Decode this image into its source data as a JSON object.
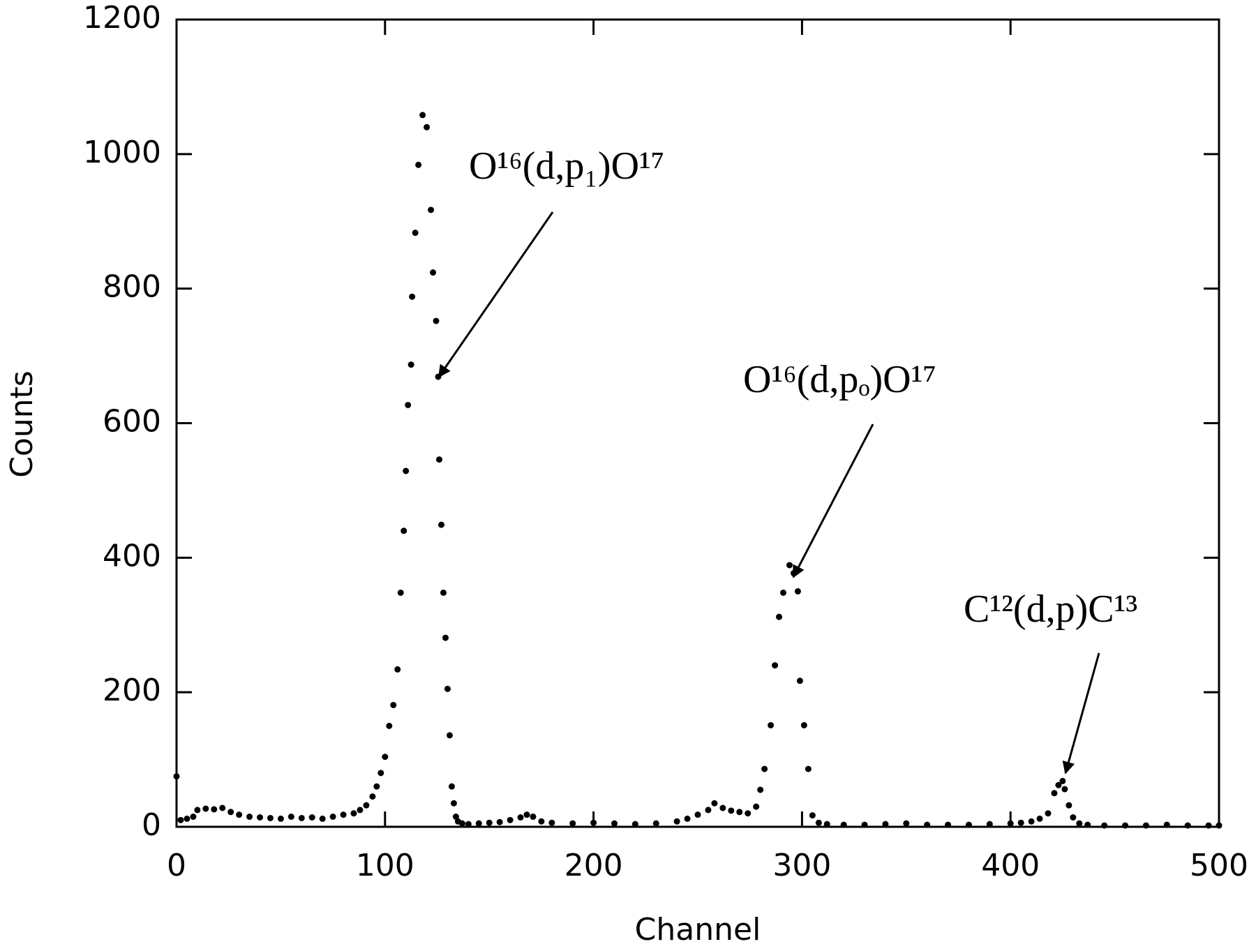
{
  "chart_data": {
    "type": "scatter",
    "x_label": "Channel",
    "y_label": "Counts",
    "x": [
      0,
      2,
      5,
      8,
      10,
      14,
      18,
      22,
      26,
      30,
      35,
      40,
      45,
      50,
      55,
      60,
      65,
      70,
      75,
      80,
      85,
      88,
      91,
      94,
      96,
      98,
      100,
      102,
      104,
      106,
      107.5,
      109,
      110,
      111,
      112.5,
      113,
      114.5,
      116,
      118,
      120,
      122,
      123,
      124.5,
      125.5,
      126,
      127,
      128,
      129,
      130,
      131,
      132,
      133,
      134,
      135,
      137,
      140,
      145,
      150,
      155,
      160,
      165,
      168,
      171,
      175,
      180,
      190,
      200,
      210,
      220,
      230,
      240,
      245,
      250,
      255,
      258,
      262,
      266,
      270,
      274,
      278,
      280,
      282,
      285,
      287,
      289,
      291,
      294,
      296,
      298,
      299,
      301,
      303,
      305,
      308,
      312,
      320,
      330,
      340,
      350,
      360,
      370,
      380,
      390,
      400,
      405,
      410,
      414,
      418,
      421,
      423,
      425,
      426,
      428,
      430,
      433,
      437,
      445,
      455,
      465,
      475,
      485,
      495,
      500
    ],
    "values": [
      75,
      10,
      12,
      15,
      25,
      27,
      26,
      28,
      22,
      18,
      15,
      14,
      13,
      12,
      15,
      13,
      14,
      12,
      15,
      18,
      20,
      25,
      32,
      45,
      60,
      80,
      104,
      150,
      181,
      234,
      348,
      440,
      529,
      627,
      687,
      788,
      883,
      984,
      1058,
      1040,
      917,
      824,
      752,
      669,
      546,
      449,
      348,
      281,
      205,
      136,
      60,
      35,
      15,
      8,
      5,
      4,
      5,
      6,
      7,
      10,
      14,
      18,
      15,
      8,
      6,
      5,
      6,
      5,
      4,
      5,
      8,
      12,
      18,
      25,
      35,
      28,
      24,
      22,
      20,
      30,
      55,
      86,
      151,
      240,
      312,
      348,
      389,
      377,
      350,
      217,
      151,
      86,
      17,
      6,
      4,
      3,
      3,
      4,
      5,
      3,
      3,
      3,
      4,
      5,
      6,
      8,
      12,
      20,
      50,
      62,
      68,
      56,
      32,
      14,
      5,
      3,
      2,
      2,
      2,
      3,
      2,
      2,
      2
    ],
    "color": "#000000",
    "xlim": [
      0,
      500
    ],
    "xticks": [
      0,
      100,
      200,
      300,
      400,
      500
    ],
    "ylim": [
      0,
      1200
    ],
    "yticks": [
      0,
      200,
      400,
      600,
      800,
      1000,
      1200
    ],
    "annotations": [
      {
        "text": "O¹⁶(d,p₁)O¹⁷"
      },
      {
        "text": "O¹⁶(d,pₒ)O¹⁷"
      },
      {
        "text": "C¹²(d,p)C¹³"
      }
    ]
  }
}
